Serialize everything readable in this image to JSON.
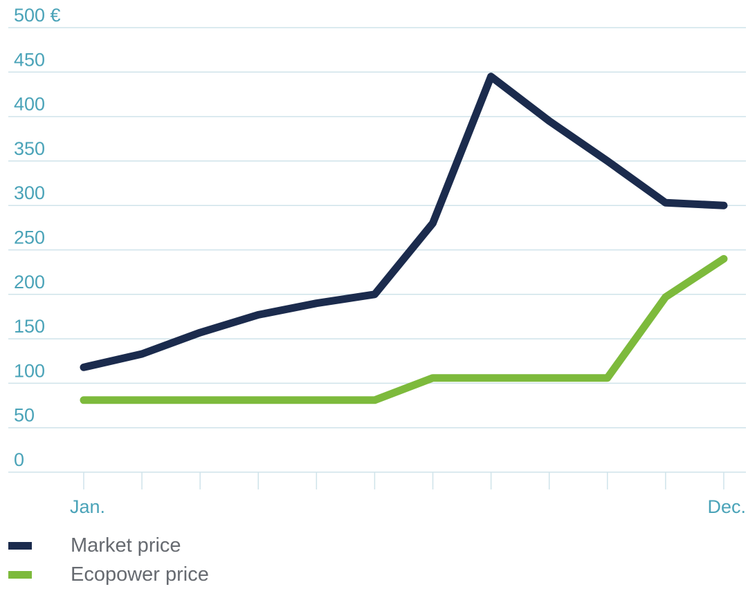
{
  "chart_data": {
    "type": "line",
    "categories": [
      "Jan.",
      "",
      "",
      "",
      "",
      "",
      "",
      "",
      "",
      "",
      "",
      "Dec."
    ],
    "y_ticks": [
      {
        "value": 0,
        "label": "0"
      },
      {
        "value": 50,
        "label": "50"
      },
      {
        "value": 100,
        "label": "100"
      },
      {
        "value": 150,
        "label": "150"
      },
      {
        "value": 200,
        "label": "200"
      },
      {
        "value": 250,
        "label": "250"
      },
      {
        "value": 300,
        "label": "300"
      },
      {
        "value": 350,
        "label": "350"
      },
      {
        "value": 400,
        "label": "400"
      },
      {
        "value": 450,
        "label": "450"
      },
      {
        "value": 500,
        "label": "500 €"
      }
    ],
    "ylim": [
      0,
      500
    ],
    "grid": true,
    "legend_position": "bottom-left",
    "series": [
      {
        "name": "Market price",
        "color": "#1b2b4d",
        "values": [
          118,
          133,
          157,
          177,
          190,
          200,
          280,
          445,
          395,
          350,
          303,
          300
        ]
      },
      {
        "name": "Ecopower price",
        "color": "#7dba3c",
        "values": [
          81,
          81,
          81,
          81,
          81,
          81,
          106,
          106,
          106,
          106,
          197,
          240
        ]
      }
    ]
  }
}
